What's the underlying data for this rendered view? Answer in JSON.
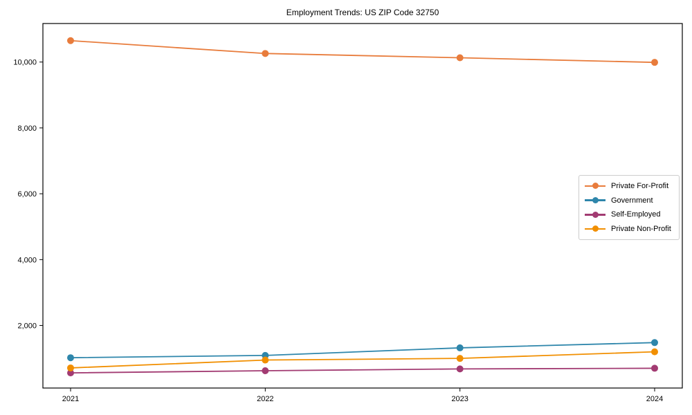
{
  "page": {
    "title": "Employment Trends: US ZIP Code 32750"
  },
  "chart_data": {
    "type": "line",
    "title": "Employment Trends: US ZIP Code 32750",
    "xlabel": "",
    "ylabel": "",
    "categories": [
      "2021",
      "2022",
      "2023",
      "2024"
    ],
    "series": [
      {
        "name": "Private For-Profit",
        "color": "#E87C3C",
        "values": [
          10650,
          10260,
          10130,
          9990
        ]
      },
      {
        "name": "Government",
        "color": "#2E86AB",
        "values": [
          1020,
          1090,
          1320,
          1480
        ]
      },
      {
        "name": "Self-Employed",
        "color": "#A23B72",
        "values": [
          560,
          625,
          680,
          700
        ]
      },
      {
        "name": "Private Non-Profit",
        "color": "#F18F01",
        "values": [
          710,
          950,
          1000,
          1200
        ]
      }
    ],
    "ylim": [
      100,
      11170
    ],
    "yticks": [
      2000,
      4000,
      6000,
      8000,
      10000
    ],
    "ytick_labels": [
      "2,000",
      "4,000",
      "6,000",
      "8,000",
      "10,000"
    ],
    "grid": false,
    "legend_position": "center-right",
    "marker": "circle",
    "axis_color": "#000000"
  }
}
